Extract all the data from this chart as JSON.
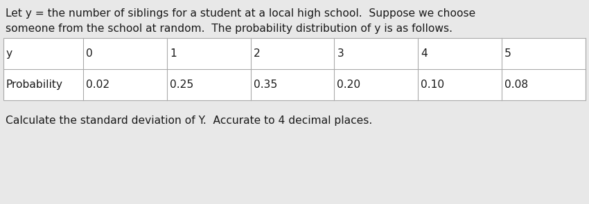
{
  "intro_line1": "Let y = the number of siblings for a student at a local high school.  Suppose we choose",
  "intro_line2": "someone from the school at random.  The probability distribution of y is as follows.",
  "footer": "Calculate the standard deviation of Y.  Accurate to 4 decimal places.",
  "row1_label": "y",
  "row2_label": "Probability",
  "y_values": [
    "0",
    "1",
    "2",
    "3",
    "4",
    "5"
  ],
  "prob_values": [
    "0.02",
    "0.25",
    "0.35",
    "0.20",
    "0.10",
    "0.08"
  ],
  "background_color": "#e8e8e8",
  "table_bg_color": "#e0e0e0",
  "table_line_color": "#aaaaaa",
  "text_color": "#1a1a1a",
  "intro_fontsize": 11.2,
  "footer_fontsize": 11.2,
  "table_fontsize": 11.2,
  "fig_width": 8.5,
  "fig_height": 2.95,
  "dpi": 100
}
